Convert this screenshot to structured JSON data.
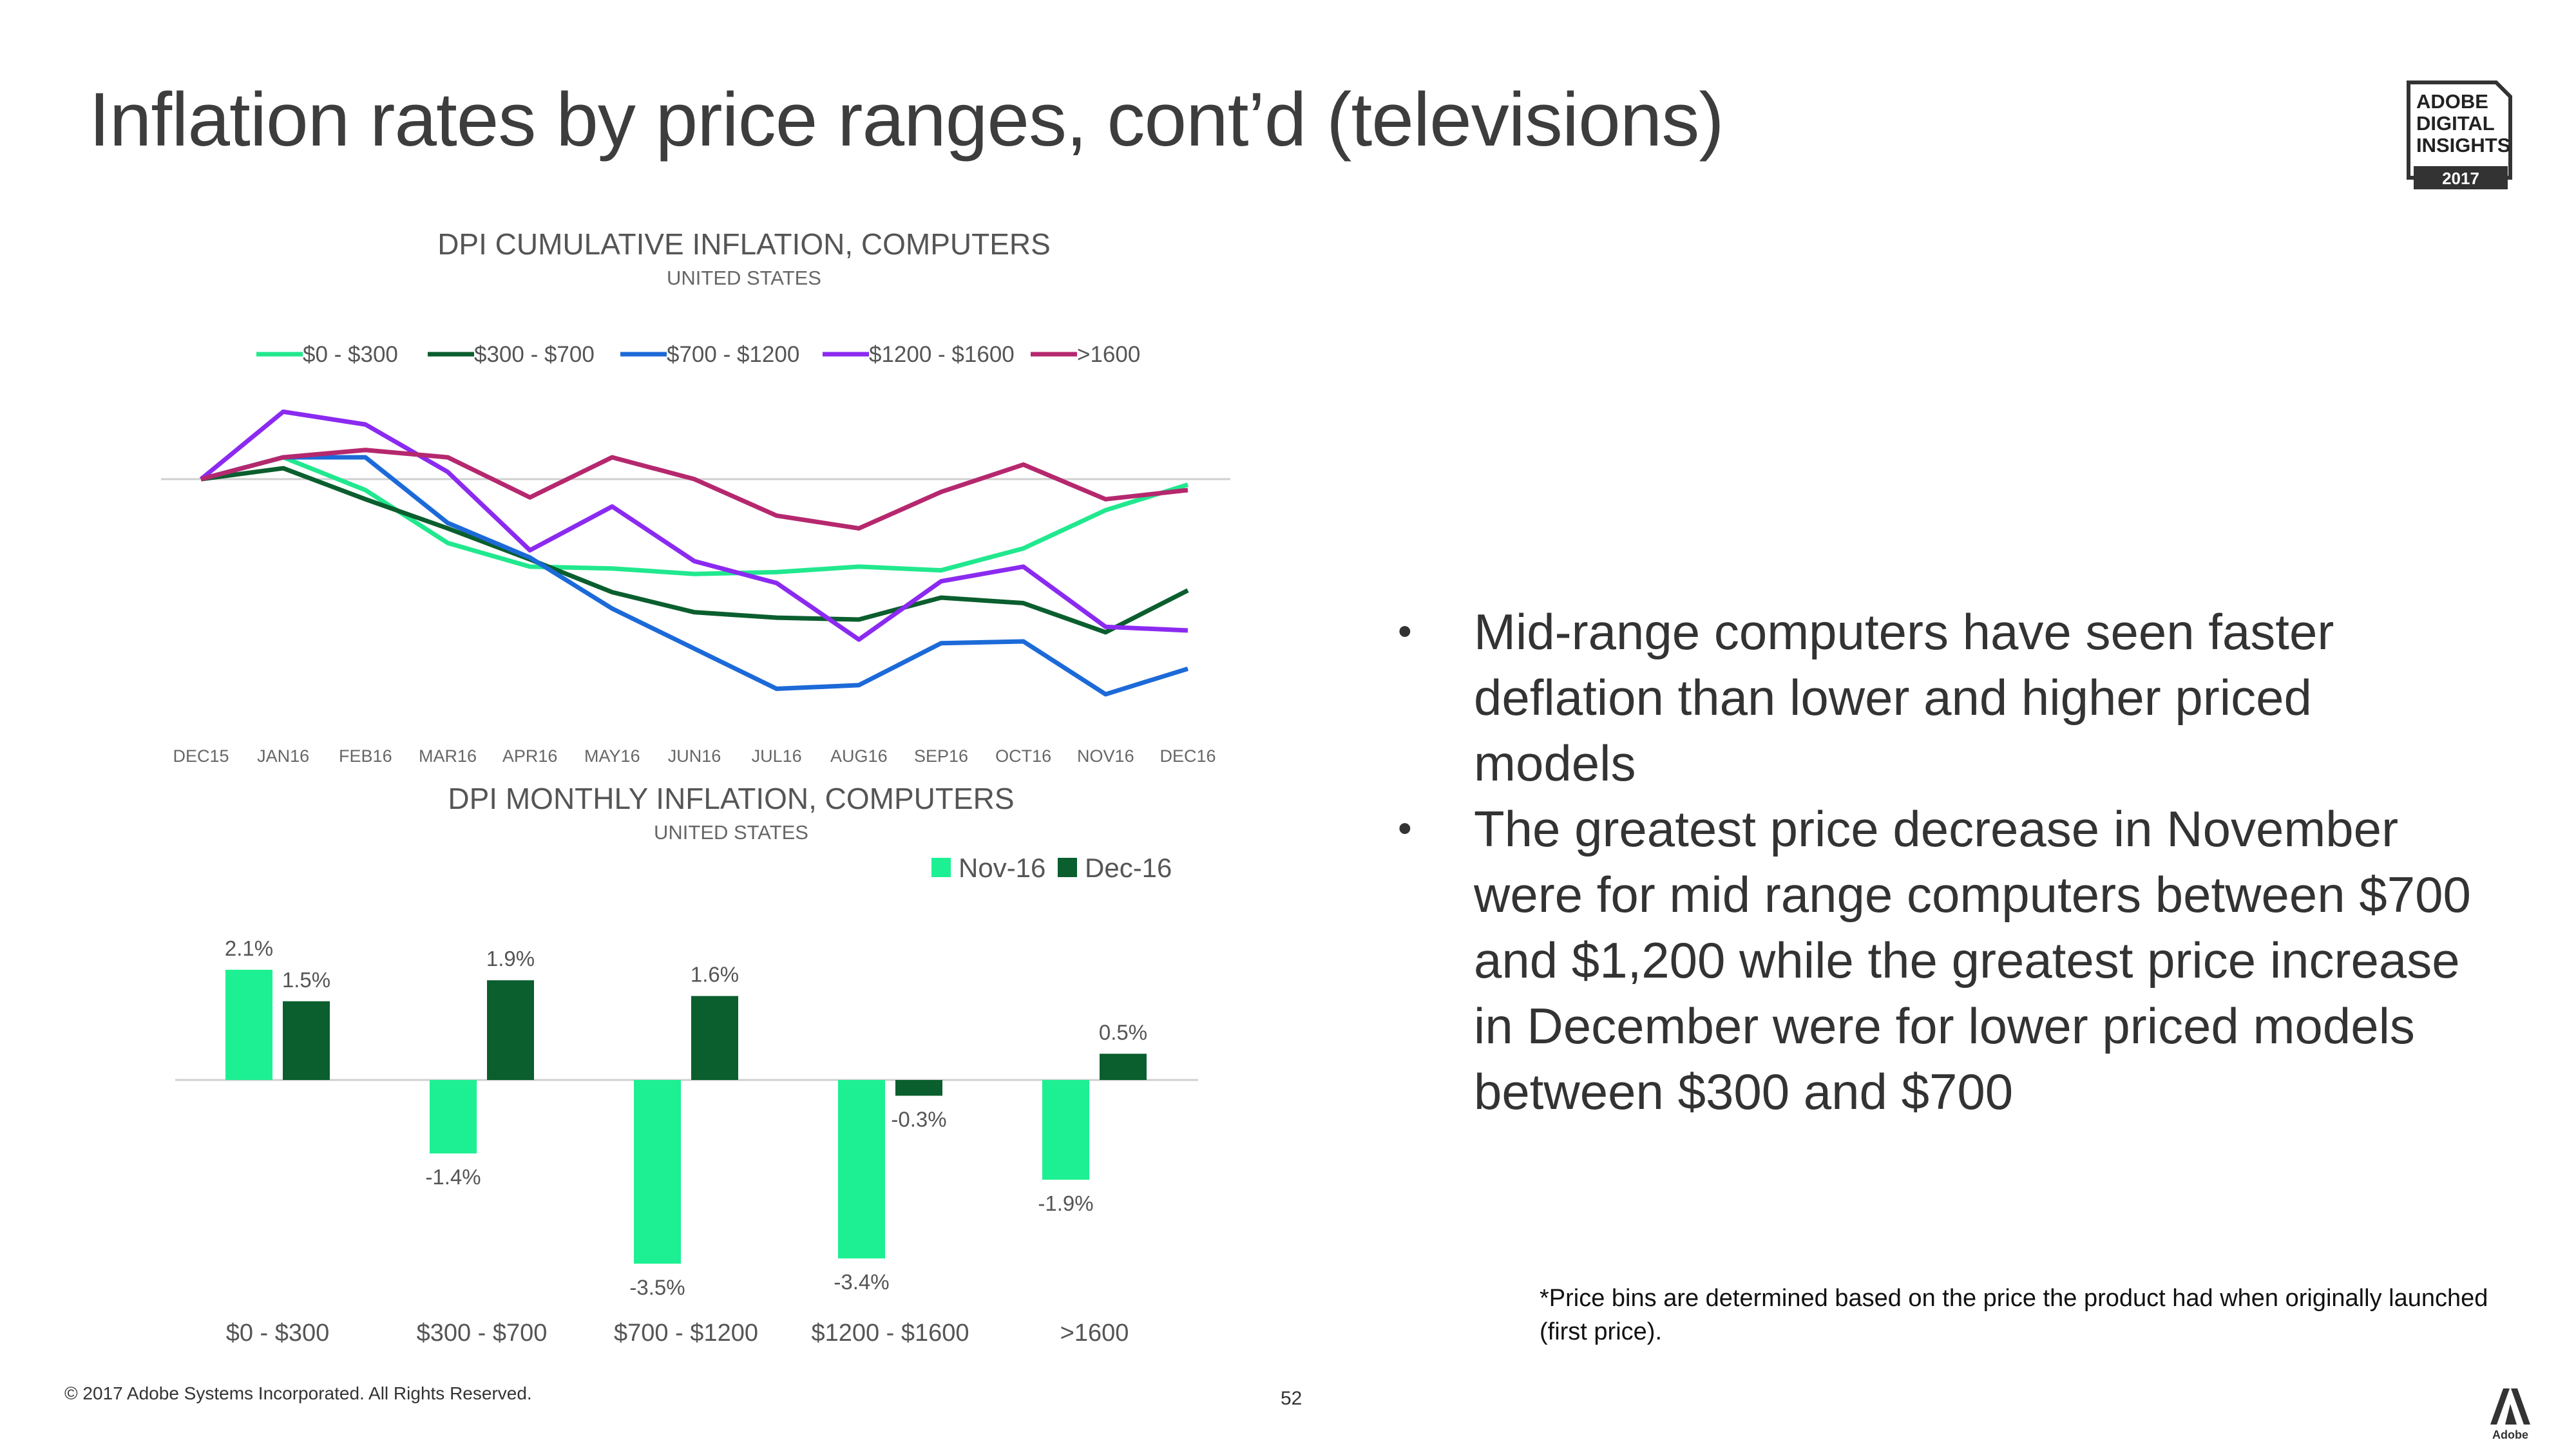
{
  "title": "Inflation rates by price ranges, cont’d (televisions)",
  "badge": {
    "lines": [
      "ADOBE",
      "DIGITAL",
      "INSIGHTS"
    ],
    "year": "2017"
  },
  "bullets": [
    "Mid-range computers have seen faster deflation than lower and higher priced models",
    "The greatest price decrease in November were for mid range computers between $700 and $1,200 while the greatest price increase in December were for lower priced models between $300 and $700"
  ],
  "bullet_glyph": "•",
  "footnote": "*Price bins are determined based on the price the product had when originally launched (first price).",
  "copyright": "© 2017 Adobe Systems Incorporated.  All Rights Reserved.",
  "page_number": "52",
  "adobe_logo_text": "Adobe",
  "chart_data": [
    {
      "type": "line",
      "title": "DPI CUMULATIVE INFLATION, COMPUTERS",
      "subtitle": "UNITED STATES",
      "x": [
        "DEC15",
        "JAN16",
        "FEB16",
        "MAR16",
        "APR16",
        "MAY16",
        "JUN16",
        "JUL16",
        "AUG16",
        "SEP16",
        "OCT16",
        "NOV16",
        "DEC16"
      ],
      "ylim": [
        -13,
        4.1
      ],
      "grid": false,
      "legend": "top",
      "series": [
        {
          "name": "$0 - $300",
          "color": "#21e88e",
          "values": [
            0,
            1.2,
            -0.6,
            -3.5,
            -4.8,
            -4.9,
            -5.2,
            -5.1,
            -4.8,
            -5.0,
            -3.8,
            -1.7,
            -0.3
          ]
        },
        {
          "name": "$300 - $700",
          "color": "#0b5e2e",
          "values": [
            0,
            0.6,
            -1.1,
            -2.7,
            -4.4,
            -6.2,
            -7.3,
            -7.6,
            -7.7,
            -6.5,
            -6.8,
            -8.4,
            -6.1
          ]
        },
        {
          "name": "$700 - $1200",
          "color": "#1c6ad8",
          "values": [
            0,
            1.2,
            1.2,
            -2.4,
            -4.3,
            -7.1,
            -9.3,
            -11.5,
            -11.3,
            -9.0,
            -8.9,
            -11.8,
            -10.4
          ]
        },
        {
          "name": "$1200 - $1600",
          "color": "#8b2af0",
          "values": [
            0,
            3.7,
            3.0,
            0.4,
            -3.9,
            -1.5,
            -4.5,
            -5.7,
            -8.8,
            -5.6,
            -4.8,
            -8.1,
            -8.3
          ]
        },
        {
          "name": ">1600",
          "color": "#b5286e",
          "values": [
            0,
            1.2,
            1.6,
            1.2,
            -1.0,
            1.2,
            0.0,
            -2.0,
            -2.7,
            -0.7,
            0.8,
            -1.1,
            -0.6
          ]
        }
      ]
    },
    {
      "type": "bar",
      "title": "DPI MONTHLY INFLATION, COMPUTERS",
      "subtitle": "UNITED STATES",
      "categories": [
        "$0 - $300",
        "$300 - $700",
        "$700 - $1200",
        "$1200 - $1600",
        ">1600"
      ],
      "ylim": [
        -4.5,
        2.5
      ],
      "grid": false,
      "legend": "top-right",
      "series": [
        {
          "name": "Nov-16",
          "color": "#1df092",
          "values": [
            2.1,
            -1.4,
            -3.5,
            -3.4,
            -1.9
          ],
          "labels": [
            "2.1%",
            "-1.4%",
            "-3.5%",
            "-3.4%",
            "-1.9%"
          ]
        },
        {
          "name": "Dec-16",
          "color": "#0b5e2e",
          "values": [
            1.5,
            1.9,
            1.6,
            -0.3,
            0.5
          ],
          "labels": [
            "1.5%",
            "1.9%",
            "1.6%",
            "-0.3%",
            "0.5%"
          ]
        }
      ]
    }
  ]
}
